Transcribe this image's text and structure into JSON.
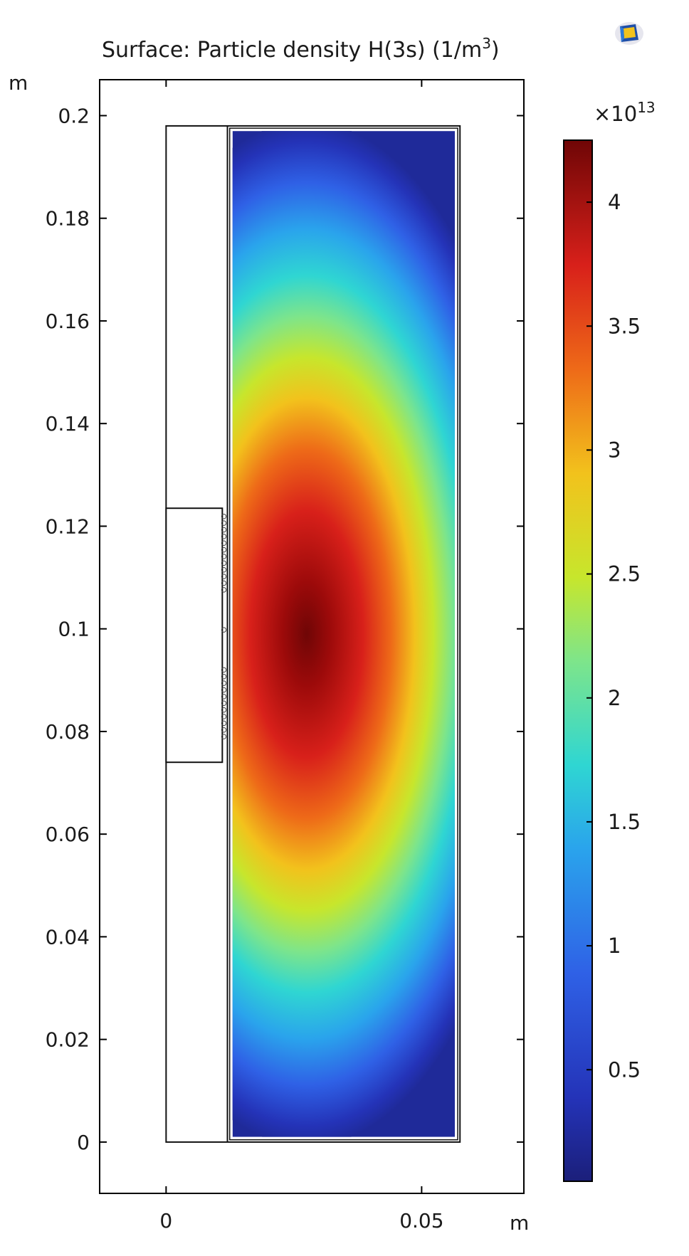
{
  "chart_data": {
    "type": "heatmap",
    "title": "Surface: Particle density H(3s) (1/m",
    "title_sup": "3",
    "title_end": ")",
    "xlabel": "m",
    "ylabel": "m",
    "xlim": [
      -0.013,
      0.07
    ],
    "ylim": [
      -0.01,
      0.207
    ],
    "x_ticks": [
      0,
      0.05
    ],
    "x_tick_labels": [
      "0",
      "0.05"
    ],
    "y_ticks": [
      0,
      0.02,
      0.04,
      0.06,
      0.08,
      0.1,
      0.12,
      0.14,
      0.16,
      0.18,
      0.2
    ],
    "y_tick_labels": [
      "0",
      "0.02",
      "0.04",
      "0.06",
      "0.08",
      "0.1",
      "0.12",
      "0.14",
      "0.16",
      "0.18",
      "0.2"
    ],
    "colorbar": {
      "multiplier_base": "×10",
      "multiplier_exp": "13",
      "range": [
        0.05,
        4.25
      ],
      "ticks": [
        0.5,
        1,
        1.5,
        2,
        2.5,
        3,
        3.5,
        4
      ],
      "tick_labels": [
        "0.5",
        "1",
        "1.5",
        "2",
        "2.5",
        "3",
        "3.5",
        "4"
      ],
      "colormap": "rainbow"
    },
    "field": {
      "peak_value": 4.25,
      "peak_location": [
        0.0275,
        0.099
      ],
      "x_range": [
        0.013,
        0.0565
      ],
      "y_range": [
        0.001,
        0.197
      ],
      "min_value": 0.05
    },
    "geometry": {
      "outer_domain": {
        "x": [
          0,
          0.0575
        ],
        "y": [
          0,
          0.198
        ]
      },
      "left_column": {
        "x": [
          0,
          0.012
        ],
        "y": [
          0,
          0.198
        ]
      },
      "coil_box": {
        "x": [
          0,
          0.011
        ],
        "y": [
          0.074,
          0.1235
        ]
      }
    },
    "grid": false
  }
}
